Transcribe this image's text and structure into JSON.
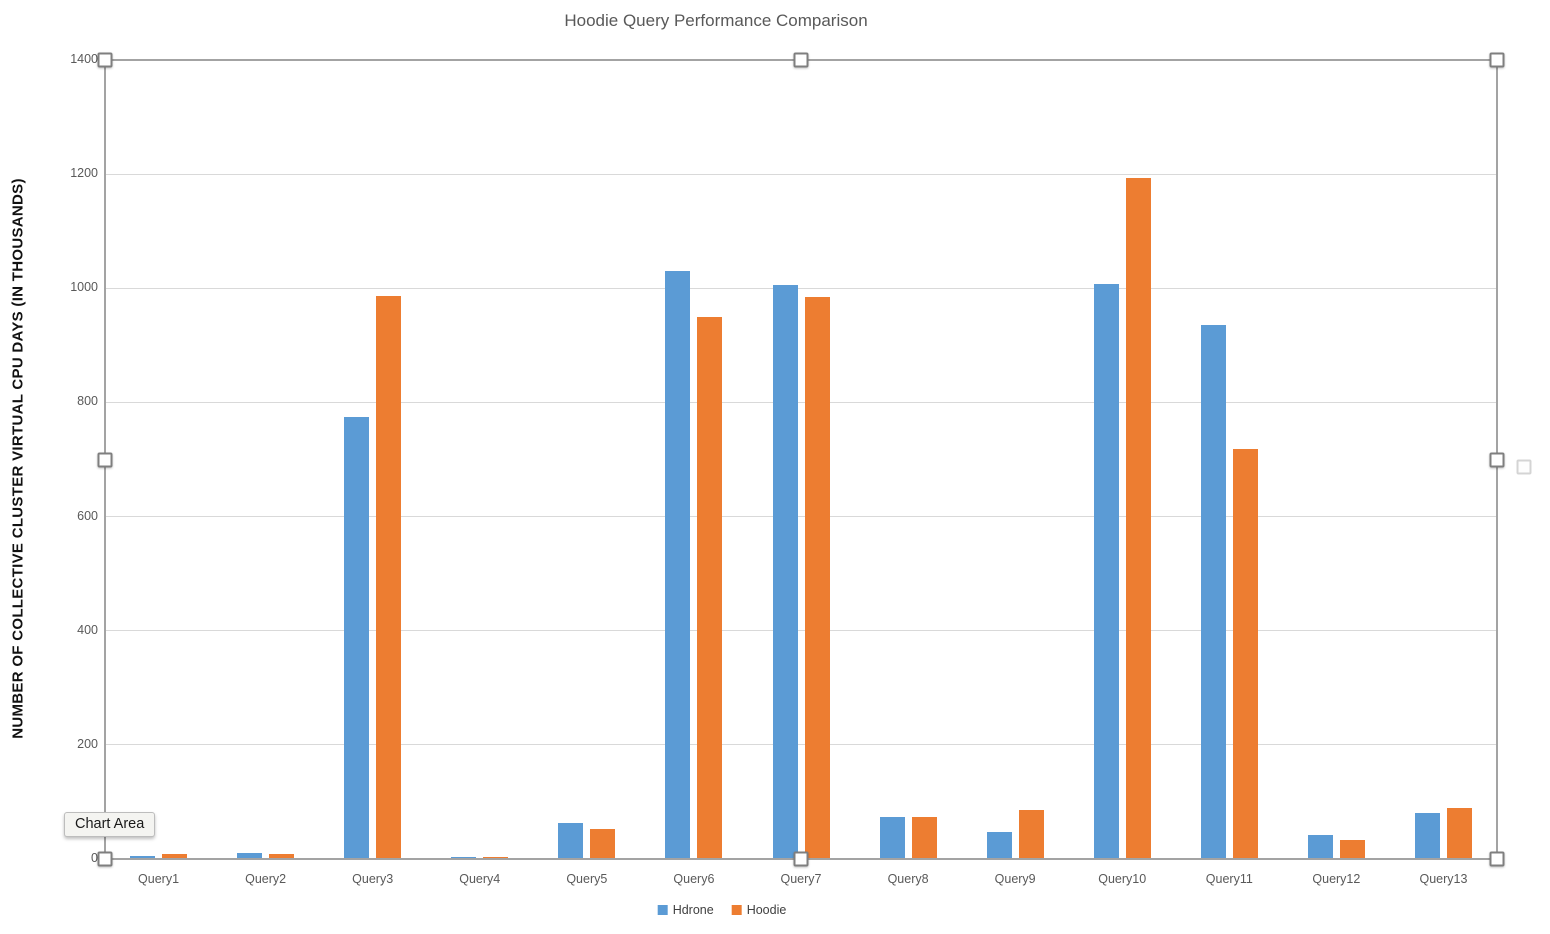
{
  "chart_data": {
    "type": "bar",
    "title": "Hoodie Query Performance Comparison",
    "xlabel": "",
    "ylabel": "NUMBER OF COLLECTIVE CLUSTER VIRTUAL CPU DAYS (IN THOUSANDS)",
    "ylim": [
      0,
      1400
    ],
    "yticks": [
      0,
      200,
      400,
      600,
      800,
      1000,
      1200,
      1400
    ],
    "grid": true,
    "legend_position": "bottom",
    "categories": [
      "Query1",
      "Query2",
      "Query3",
      "Query4",
      "Query5",
      "Query6",
      "Query7",
      "Query8",
      "Query9",
      "Query10",
      "Query11",
      "Query12",
      "Query13"
    ],
    "series": [
      {
        "name": "Hdrone",
        "color": "#5B9BD5",
        "values": [
          5,
          10,
          775,
          4,
          63,
          1031,
          1006,
          74,
          48,
          1008,
          936,
          42,
          81
        ]
      },
      {
        "name": "Hoodie",
        "color": "#ED7D31",
        "values": [
          8,
          8,
          987,
          4,
          52,
          950,
          985,
          74,
          86,
          1194,
          718,
          34,
          90
        ]
      }
    ]
  },
  "tooltip": {
    "label": "Chart Area"
  },
  "colors": {
    "series_hdrone": "#5B9BD5",
    "series_hoodie": "#ED7D31",
    "gridline": "#d9d9d9",
    "axis_line": "#8c8c8c",
    "title_text": "#595959",
    "tick_text": "#595959",
    "selection_border": "#a3a3a3"
  }
}
